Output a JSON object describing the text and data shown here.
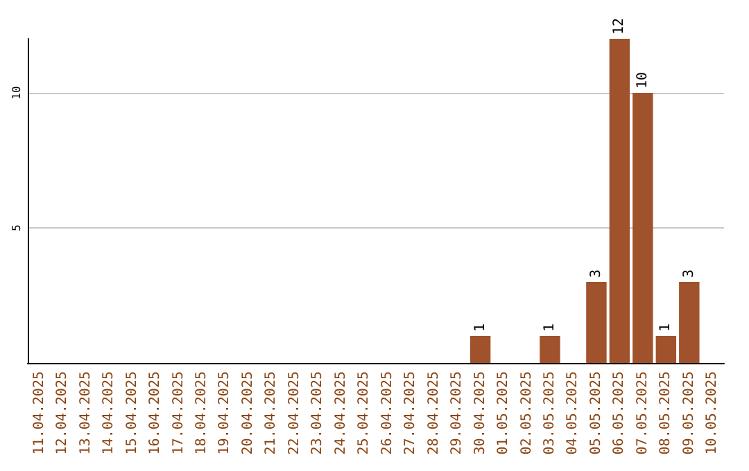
{
  "chart_data": {
    "type": "bar",
    "categories": [
      "11.04.2025",
      "12.04.2025",
      "13.04.2025",
      "14.04.2025",
      "15.04.2025",
      "16.04.2025",
      "17.04.2025",
      "18.04.2025",
      "19.04.2025",
      "20.04.2025",
      "21.04.2025",
      "22.04.2025",
      "23.04.2025",
      "24.04.2025",
      "25.04.2025",
      "26.04.2025",
      "27.04.2025",
      "28.04.2025",
      "29.04.2025",
      "30.04.2025",
      "01.05.2025",
      "02.05.2025",
      "03.05.2025",
      "04.05.2025",
      "05.05.2025",
      "06.05.2025",
      "07.05.2025",
      "08.05.2025",
      "09.05.2025",
      "10.05.2025"
    ],
    "values": [
      0,
      0,
      0,
      0,
      0,
      0,
      0,
      0,
      0,
      0,
      0,
      0,
      0,
      0,
      0,
      0,
      0,
      0,
      0,
      1,
      0,
      0,
      1,
      0,
      3,
      12,
      10,
      1,
      3,
      0
    ],
    "value_labels": [
      null,
      null,
      null,
      null,
      null,
      null,
      null,
      null,
      null,
      null,
      null,
      null,
      null,
      null,
      null,
      null,
      null,
      null,
      null,
      "1",
      null,
      null,
      "1",
      null,
      "3",
      "12",
      "10",
      "1",
      "3",
      null
    ],
    "color": "#a0522d",
    "ylim": [
      0,
      12
    ],
    "yticks": [
      5,
      10
    ],
    "grid": "y"
  }
}
